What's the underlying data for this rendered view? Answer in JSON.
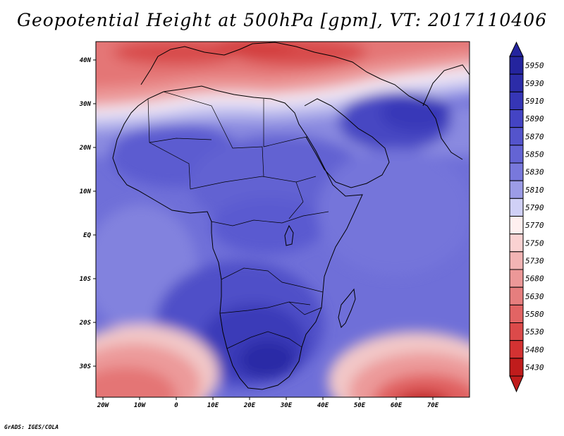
{
  "title": "Geopotential Height at 500hPa [gpm], VT: 2017110406",
  "credit": "GrADS: IGES/COLA",
  "map": {
    "variable": "Geopotential Height at 500hPa",
    "units": "gpm",
    "valid_time": "2017110406",
    "lon_range": [
      -25,
      80
    ],
    "lat_range": [
      -37,
      45
    ],
    "x_ticks": [
      "20W",
      "10W",
      "0",
      "10E",
      "20E",
      "30E",
      "40E",
      "50E",
      "60E",
      "70E"
    ],
    "y_ticks": [
      "40N",
      "30N",
      "20N",
      "10N",
      "EQ",
      "10S",
      "20S",
      "30S"
    ]
  },
  "colorbar": {
    "levels": [
      {
        "label": "5950",
        "color": "#24249e"
      },
      {
        "label": "5930",
        "color": "#2c2ca8"
      },
      {
        "label": "5910",
        "color": "#3636b6"
      },
      {
        "label": "5890",
        "color": "#4444c4"
      },
      {
        "label": "5870",
        "color": "#5454cc"
      },
      {
        "label": "5850",
        "color": "#6464d4"
      },
      {
        "label": "5830",
        "color": "#7878dc"
      },
      {
        "label": "5810",
        "color": "#9c9ce6"
      },
      {
        "label": "5790",
        "color": "#d0d0f6"
      },
      {
        "label": "5770",
        "color": "#fff0f0"
      },
      {
        "label": "5750",
        "color": "#fad2d2"
      },
      {
        "label": "5730",
        "color": "#f2b4b4"
      },
      {
        "label": "5680",
        "color": "#ec9898"
      },
      {
        "label": "5630",
        "color": "#e67e7e"
      },
      {
        "label": "5580",
        "color": "#e26464"
      },
      {
        "label": "5530",
        "color": "#dc4a4a"
      },
      {
        "label": "5480",
        "color": "#d43232"
      },
      {
        "label": "5430",
        "color": "#c01c1c"
      }
    ]
  }
}
